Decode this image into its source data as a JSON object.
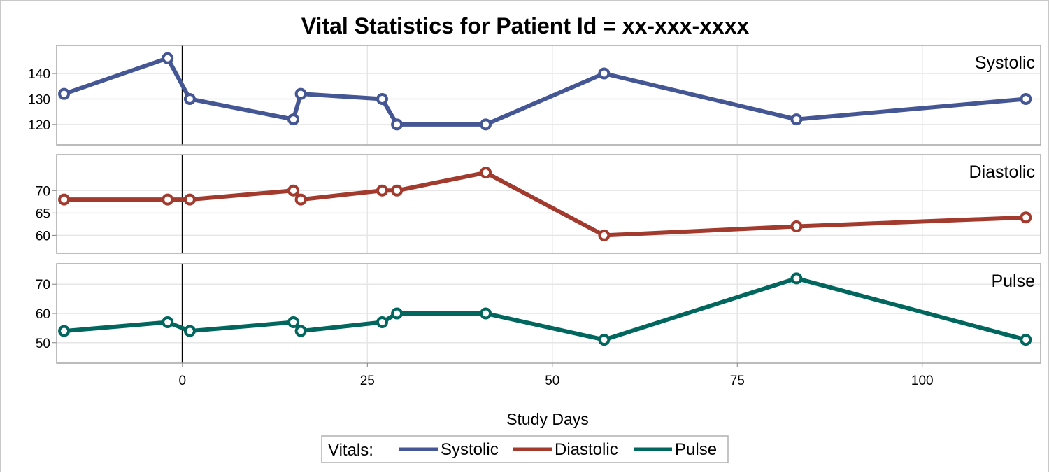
{
  "chart_data": {
    "type": "line",
    "title": "Vital Statistics for Patient Id = xx-xxx-xxxx",
    "xlabel": "Study Days",
    "x_ticks": [
      0,
      25,
      50,
      75,
      100
    ],
    "xlim": [
      -17,
      116
    ],
    "reference_line_x": 0,
    "grid": true,
    "legend": {
      "title": "Vitals:",
      "placement": "bottom-center",
      "items": [
        "Systolic",
        "Diastolic",
        "Pulse"
      ]
    },
    "colors": {
      "Systolic": "#445694",
      "Diastolic": "#A23A2E",
      "Pulse": "#01665E",
      "grid": "#e6e6e6",
      "frame": "#a6a6a6"
    },
    "panels": [
      {
        "name": "Systolic",
        "label": "Systolic",
        "ylim": [
          112,
          151
        ],
        "y_ticks": [
          120,
          130,
          140
        ],
        "x": [
          -16,
          -2,
          1,
          15,
          16,
          27,
          29,
          41,
          57,
          83,
          114
        ],
        "y": [
          132,
          146,
          130,
          122,
          132,
          130,
          120,
          120,
          140,
          122,
          130
        ]
      },
      {
        "name": "Diastolic",
        "label": "Diastolic",
        "ylim": [
          56,
          78
        ],
        "y_ticks": [
          60,
          65,
          70
        ],
        "x": [
          -16,
          -2,
          1,
          15,
          16,
          27,
          29,
          41,
          57,
          83,
          114
        ],
        "y": [
          68,
          68,
          68,
          70,
          68,
          70,
          70,
          74,
          60,
          62,
          64
        ]
      },
      {
        "name": "Pulse",
        "label": "Pulse",
        "ylim": [
          43,
          77
        ],
        "y_ticks": [
          50,
          60,
          70
        ],
        "x": [
          -16,
          -2,
          1,
          15,
          16,
          27,
          29,
          41,
          57,
          83,
          114
        ],
        "y": [
          54,
          57,
          54,
          57,
          54,
          57,
          60,
          60,
          51,
          72,
          51
        ]
      }
    ]
  }
}
